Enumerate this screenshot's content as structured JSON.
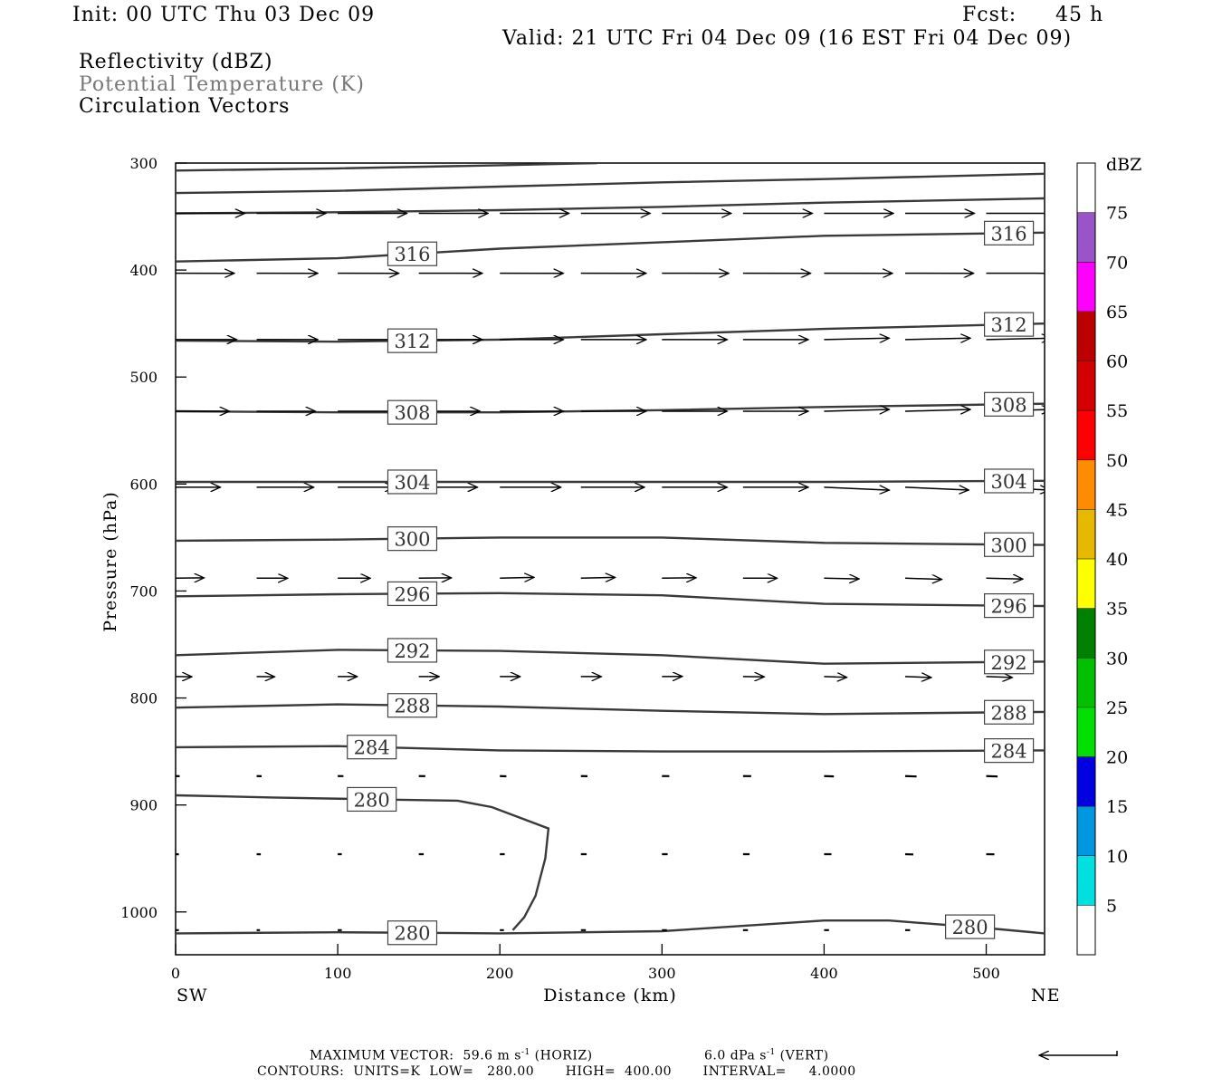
{
  "header": {
    "init": "Init: 00 UTC Thu 03 Dec 09",
    "fcst_label": "Fcst:",
    "fcst_value": "45 h",
    "valid": "Valid: 21 UTC Fri 04 Dec 09 (16 EST Fri 04 Dec 09)",
    "field1": "Reflectivity (dBZ)",
    "field2": "Potential Temperature (K)",
    "field3": "Circulation Vectors"
  },
  "footer": {
    "max_vector": "MAXIMUM VECTOR:  59.6 m s",
    "max_vector_horiz": " (HORIZ)",
    "max_vector_vert": "6.0 dPa s",
    "max_vector_vert_suffix": " (VERT)",
    "exponent": "-1",
    "contours": "CONTOURS:  UNITS=K  LOW=   280.00       HIGH=  400.00       INTERVAL=     4.0000"
  },
  "chart_data": {
    "type": "line",
    "title": "",
    "xlabel": "Distance (km)",
    "ylabel": "Pressure (hPa)",
    "x_left_label": "SW",
    "x_right_label": "NE",
    "xlim": [
      0,
      536
    ],
    "ylim": [
      1040,
      300
    ],
    "y_scale": "linear, inverted",
    "x_ticks": [
      0,
      100,
      200,
      300,
      400,
      500
    ],
    "y_ticks": [
      300,
      400,
      500,
      600,
      700,
      800,
      900,
      1000
    ],
    "contours": [
      {
        "value": 280,
        "label": "280",
        "points": [
          [
            0,
            891
          ],
          [
            60,
            893
          ],
          [
            130,
            895
          ],
          [
            174,
            896
          ],
          [
            195,
            902
          ],
          [
            230,
            922
          ],
          [
            228,
            950
          ],
          [
            222,
            985
          ],
          [
            215,
            1005
          ],
          [
            208,
            1017
          ]
        ]
      },
      {
        "value": 280,
        "label": "280",
        "points": [
          [
            0,
            1020
          ],
          [
            100,
            1019
          ],
          [
            200,
            1020
          ],
          [
            300,
            1018
          ],
          [
            400,
            1008
          ],
          [
            440,
            1008
          ],
          [
            500,
            1015
          ],
          [
            536,
            1020
          ]
        ]
      },
      {
        "value": 284,
        "label": "284",
        "points": [
          [
            0,
            846
          ],
          [
            100,
            845
          ],
          [
            200,
            849
          ],
          [
            300,
            850
          ],
          [
            400,
            850
          ],
          [
            536,
            849
          ]
        ]
      },
      {
        "value": 288,
        "label": "288",
        "points": [
          [
            0,
            809
          ],
          [
            100,
            806
          ],
          [
            200,
            808
          ],
          [
            300,
            812
          ],
          [
            400,
            815
          ],
          [
            536,
            813
          ]
        ]
      },
      {
        "value": 292,
        "label": "292",
        "points": [
          [
            0,
            760
          ],
          [
            100,
            755
          ],
          [
            200,
            756
          ],
          [
            300,
            760
          ],
          [
            400,
            768
          ],
          [
            536,
            766
          ]
        ]
      },
      {
        "value": 296,
        "label": "296",
        "points": [
          [
            0,
            705
          ],
          [
            100,
            703
          ],
          [
            200,
            702
          ],
          [
            300,
            704
          ],
          [
            400,
            712
          ],
          [
            536,
            714
          ]
        ]
      },
      {
        "value": 300,
        "label": "300",
        "points": [
          [
            0,
            653
          ],
          [
            100,
            652
          ],
          [
            200,
            650
          ],
          [
            300,
            650
          ],
          [
            400,
            655
          ],
          [
            536,
            657
          ]
        ]
      },
      {
        "value": 304,
        "label": "304",
        "points": [
          [
            0,
            598
          ],
          [
            100,
            598
          ],
          [
            200,
            598
          ],
          [
            300,
            598
          ],
          [
            400,
            598
          ],
          [
            536,
            597
          ]
        ]
      },
      {
        "value": 308,
        "label": "308",
        "points": [
          [
            0,
            532
          ],
          [
            100,
            533
          ],
          [
            200,
            533
          ],
          [
            300,
            531
          ],
          [
            400,
            528
          ],
          [
            536,
            525
          ]
        ]
      },
      {
        "value": 312,
        "label": "312",
        "points": [
          [
            0,
            466
          ],
          [
            100,
            467
          ],
          [
            200,
            465
          ],
          [
            300,
            460
          ],
          [
            400,
            455
          ],
          [
            536,
            450
          ]
        ]
      },
      {
        "value": 316,
        "label": "316",
        "points": [
          [
            0,
            392
          ],
          [
            100,
            389
          ],
          [
            200,
            380
          ],
          [
            300,
            374
          ],
          [
            400,
            368
          ],
          [
            536,
            365
          ]
        ]
      },
      {
        "value": 320,
        "label": "",
        "points": [
          [
            0,
            347
          ],
          [
            100,
            346
          ],
          [
            200,
            344
          ],
          [
            300,
            341
          ],
          [
            400,
            337
          ],
          [
            536,
            333
          ]
        ]
      },
      {
        "value": 324,
        "label": "",
        "points": [
          [
            0,
            328
          ],
          [
            100,
            326
          ],
          [
            200,
            322
          ],
          [
            300,
            318
          ],
          [
            400,
            315
          ],
          [
            536,
            310
          ]
        ]
      },
      {
        "value": 328,
        "label": "",
        "points": [
          [
            0,
            307
          ],
          [
            100,
            305
          ],
          [
            200,
            302
          ],
          [
            260,
            300
          ]
        ]
      }
    ],
    "vectors": [
      {
        "p": 347,
        "x": [
          0,
          50,
          100,
          150,
          200,
          250,
          300,
          350,
          400,
          450,
          500
        ],
        "u": [
          0.85,
          0.85,
          0.85,
          0.85,
          0.85,
          0.85,
          0.85,
          0.85,
          0.85,
          0.85,
          0.85
        ],
        "w": [
          0,
          0,
          0,
          0,
          0,
          0,
          0,
          0,
          0,
          0,
          0
        ]
      },
      {
        "p": 403,
        "x": [
          0,
          50,
          100,
          150,
          200,
          250,
          300,
          350,
          400,
          450,
          500
        ],
        "u": [
          0.72,
          0.75,
          0.75,
          0.78,
          0.78,
          0.8,
          0.82,
          0.83,
          0.84,
          0.84,
          0.84
        ],
        "w": [
          0,
          0,
          0,
          0,
          0,
          0,
          0,
          0,
          0,
          0,
          0
        ]
      },
      {
        "p": 465,
        "x": [
          0,
          50,
          100,
          150,
          200,
          250,
          300,
          350,
          400,
          450,
          500
        ],
        "u": [
          0.75,
          0.75,
          0.75,
          0.78,
          0.78,
          0.8,
          0.8,
          0.8,
          0.8,
          0.8,
          0.8
        ],
        "w": [
          0,
          0,
          0,
          0,
          0,
          0,
          0,
          0,
          -0.2,
          -0.2,
          -0.2
        ]
      },
      {
        "p": 532,
        "x": [
          0,
          50,
          100,
          150,
          200,
          250,
          300,
          350,
          400,
          450,
          500
        ],
        "u": [
          0.66,
          0.72,
          0.75,
          0.75,
          0.78,
          0.8,
          0.8,
          0.8,
          0.8,
          0.8,
          0.8
        ],
        "w": [
          0,
          0,
          0,
          0,
          0,
          0,
          0,
          0,
          -0.25,
          -0.25,
          -0.25
        ]
      },
      {
        "p": 603,
        "x": [
          0,
          50,
          100,
          150,
          200,
          250,
          300,
          350,
          400,
          450,
          500
        ],
        "u": [
          0.55,
          0.7,
          0.7,
          0.72,
          0.75,
          0.78,
          0.8,
          0.8,
          0.8,
          0.78,
          0.78
        ],
        "w": [
          0,
          0,
          0,
          0,
          0,
          0,
          0,
          0,
          0.4,
          0.4,
          0.4
        ]
      },
      {
        "p": 688,
        "x": [
          0,
          50,
          100,
          150,
          200,
          250,
          300,
          350,
          400,
          450,
          500
        ],
        "u": [
          0.35,
          0.38,
          0.4,
          0.4,
          0.42,
          0.42,
          0.42,
          0.42,
          0.43,
          0.45,
          0.45
        ],
        "w": [
          -0.1,
          0,
          0,
          -0.1,
          -0.2,
          -0.2,
          -0.1,
          0,
          0.2,
          0.3,
          0.2
        ]
      },
      {
        "p": 780,
        "x": [
          0,
          50,
          100,
          150,
          200,
          250,
          300,
          350,
          400,
          450,
          500
        ],
        "u": [
          0.2,
          0.22,
          0.24,
          0.25,
          0.25,
          0.25,
          0.25,
          0.26,
          0.28,
          0.32,
          0.32
        ],
        "w": [
          0.1,
          0.1,
          0,
          0,
          0,
          0,
          -0.1,
          0.1,
          0.3,
          0.3,
          0.3
        ]
      },
      {
        "p": 873,
        "x": [
          0,
          50,
          100,
          150,
          200,
          250,
          300,
          350,
          400,
          450,
          500
        ],
        "u": [
          0.05,
          0.06,
          0.07,
          0.08,
          0.08,
          0.08,
          0.09,
          0.1,
          0.12,
          0.14,
          0.14
        ],
        "w": [
          0.2,
          0.3,
          0,
          0,
          0.3,
          0.2,
          0,
          0,
          0.3,
          0.3,
          0.3
        ]
      },
      {
        "p": 946,
        "x": [
          0,
          50,
          100,
          150,
          200,
          250,
          300,
          350,
          400,
          450,
          500
        ],
        "u": [
          0.04,
          0.05,
          0.05,
          0.06,
          0.06,
          0.07,
          0.07,
          0.08,
          0.09,
          0.1,
          0.1
        ],
        "w": [
          0.2,
          0.2,
          0,
          0,
          0,
          0,
          0,
          0,
          0,
          0.3,
          0.1
        ]
      },
      {
        "p": 1017,
        "x": [
          0,
          50,
          100,
          150,
          200,
          250,
          300,
          350,
          400,
          450,
          500
        ],
        "u": [
          0.04,
          0.04,
          0.05,
          0.05,
          0.05,
          0.06,
          0.06,
          0.06,
          0.06,
          0.06,
          0.06
        ],
        "w": [
          0,
          0,
          0,
          0,
          0,
          0,
          0,
          0,
          0,
          0,
          0
        ]
      }
    ],
    "reference_vector": {
      "label_horiz": "59.6 m s-1",
      "label_vert": "6.0 dPa s-1"
    },
    "colorbar": {
      "title": "dBZ",
      "levels": [
        "5",
        "10",
        "15",
        "20",
        "25",
        "30",
        "35",
        "40",
        "45",
        "50",
        "55",
        "60",
        "65",
        "70",
        "75"
      ],
      "colors": [
        "#ffffff",
        "#00e0e0",
        "#0096e0",
        "#0000e0",
        "#00e000",
        "#00c000",
        "#008000",
        "#ffff00",
        "#e6b800",
        "#ff8c00",
        "#ff0000",
        "#d40000",
        "#bb0000",
        "#ff00ff",
        "#9955c8",
        "#ffffff"
      ]
    }
  }
}
